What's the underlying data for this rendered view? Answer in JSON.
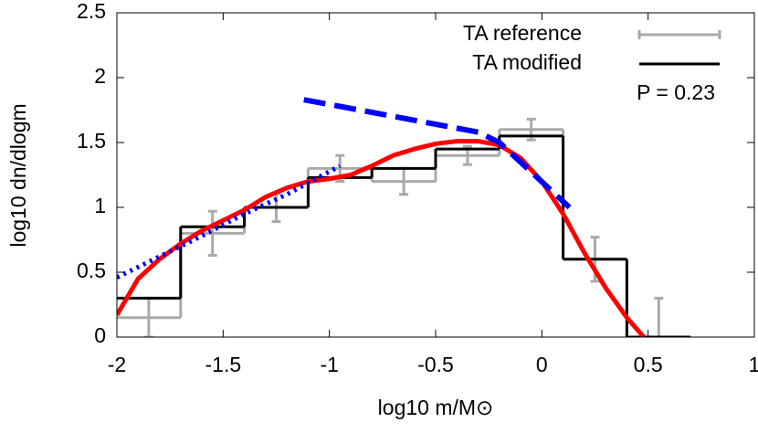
{
  "chart_data": {
    "type": "histogram",
    "xlabel": "log10 m/M⊙",
    "ylabel": "log10 dn/dlogm",
    "annotation": "P = 0.23",
    "xlim": [
      -2,
      1
    ],
    "ylim": [
      0,
      2.5
    ],
    "xticks": [
      -2,
      -1.5,
      -1,
      -0.5,
      0,
      0.5,
      1
    ],
    "yticks": [
      0,
      0.5,
      1,
      1.5,
      2,
      2.5
    ],
    "grid": false,
    "legend": "upper right",
    "bins": [
      -2,
      -1.7,
      -1.4,
      -1.1,
      -0.8,
      -0.5,
      -0.2,
      0.1,
      0.4,
      0.7
    ],
    "series": [
      {
        "name": "TA reference",
        "style": "step",
        "color": "#aaaaaa",
        "values": [
          0.15,
          0.8,
          1.0,
          1.3,
          1.2,
          1.4,
          1.6,
          0.6,
          0
        ],
        "errors": [
          0.15,
          0.17,
          0.11,
          0.1,
          0.1,
          0.07,
          0.08,
          0.17,
          0.3
        ]
      },
      {
        "name": "TA modified",
        "style": "step",
        "color": "#000000",
        "values": [
          0.3,
          0.85,
          1.0,
          1.23,
          1.3,
          1.45,
          1.55,
          0.6,
          0
        ]
      },
      {
        "style": "line",
        "color": "#ff0000",
        "width": 5,
        "dash": "none",
        "x": [
          -2,
          -1.9,
          -1.8,
          -1.7,
          -1.6,
          -1.5,
          -1.4,
          -1.3,
          -1.2,
          -1.1,
          -1.0,
          -0.9,
          -0.8,
          -0.7,
          -0.6,
          -0.5,
          -0.4,
          -0.3,
          -0.2,
          -0.1,
          0,
          0.1,
          0.2,
          0.3,
          0.4,
          0.48
        ],
        "values": [
          0.17,
          0.45,
          0.6,
          0.72,
          0.82,
          0.9,
          0.98,
          1.08,
          1.15,
          1.2,
          1.22,
          1.25,
          1.32,
          1.4,
          1.45,
          1.49,
          1.51,
          1.51,
          1.48,
          1.38,
          1.2,
          0.95,
          0.65,
          0.38,
          0.15,
          0
        ]
      },
      {
        "style": "line",
        "color": "#0000ff",
        "width": 5,
        "dash": "3 5",
        "x": [
          -2,
          -1.8,
          -1.6,
          -1.4,
          -1.2,
          -0.95
        ],
        "values": [
          0.46,
          0.62,
          0.78,
          0.95,
          1.1,
          1.32
        ]
      },
      {
        "style": "line",
        "color": "#0000ff",
        "width": 6,
        "dash": "24 10",
        "x": [
          -1.12,
          -0.3,
          -0.2,
          0.13
        ],
        "values": [
          1.83,
          1.58,
          1.5,
          1.0
        ]
      }
    ]
  }
}
